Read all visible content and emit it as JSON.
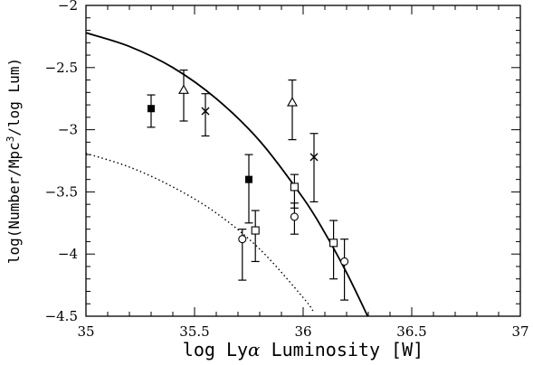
{
  "chart_data": {
    "type": "scatter",
    "title": "",
    "xlabel_parts": [
      "log Ly",
      "α",
      " Luminosity [W]"
    ],
    "ylabel_parts": [
      "log(Number/Mpc",
      "3",
      "/log Lum)"
    ],
    "xlim": [
      35,
      37
    ],
    "ylim": [
      -4.5,
      -2
    ],
    "x_ticks": [
      35,
      35.5,
      36,
      36.5,
      37
    ],
    "x_tick_labels": [
      "35",
      "35.5",
      "36",
      "36.5",
      "37"
    ],
    "y_ticks": [
      -4.5,
      -4,
      -3.5,
      -3,
      -2.5,
      -2
    ],
    "y_tick_labels": [
      "−4.5",
      "−4",
      "−3.5",
      "−3",
      "−2.5",
      "−2"
    ],
    "grid": false,
    "series": [
      {
        "marker": "filled-square",
        "points": [
          {
            "x": 35.3,
            "y": -2.83,
            "ylo": -2.98,
            "yhi": -2.72
          },
          {
            "x": 35.75,
            "y": -3.4,
            "ylo": -3.75,
            "yhi": -3.2
          }
        ]
      },
      {
        "marker": "triangle",
        "points": [
          {
            "x": 35.45,
            "y": -2.68,
            "ylo": -2.93,
            "yhi": -2.52
          },
          {
            "x": 35.95,
            "y": -2.78,
            "ylo": -3.08,
            "yhi": -2.6
          }
        ]
      },
      {
        "marker": "cross",
        "points": [
          {
            "x": 35.55,
            "y": -2.85,
            "ylo": -3.05,
            "yhi": -2.71
          },
          {
            "x": 36.05,
            "y": -3.22,
            "ylo": -3.58,
            "yhi": -3.03
          }
        ]
      },
      {
        "marker": "open-square",
        "points": [
          {
            "x": 35.78,
            "y": -3.81,
            "ylo": -4.06,
            "yhi": -3.65
          },
          {
            "x": 35.96,
            "y": -3.46,
            "ylo": -3.63,
            "yhi": -3.36
          },
          {
            "x": 36.14,
            "y": -3.91,
            "ylo": -4.2,
            "yhi": -3.73
          }
        ]
      },
      {
        "marker": "open-circle",
        "points": [
          {
            "x": 35.72,
            "y": -3.88,
            "ylo": -4.21,
            "yhi": -3.8
          },
          {
            "x": 35.96,
            "y": -3.7,
            "ylo": -3.84,
            "yhi": -3.59
          },
          {
            "x": 36.19,
            "y": -4.06,
            "ylo": -4.37,
            "yhi": -3.88
          }
        ]
      }
    ],
    "curves": [
      {
        "style": "solid",
        "points": [
          [
            35.0,
            -2.22
          ],
          [
            35.2,
            -2.33
          ],
          [
            35.4,
            -2.5
          ],
          [
            35.6,
            -2.75
          ],
          [
            35.8,
            -3.09
          ],
          [
            36.0,
            -3.55
          ],
          [
            36.1,
            -3.83
          ],
          [
            36.2,
            -4.15
          ],
          [
            36.3,
            -4.51
          ]
        ]
      },
      {
        "style": "dotted",
        "points": [
          [
            35.0,
            -3.19
          ],
          [
            35.2,
            -3.3
          ],
          [
            35.4,
            -3.46
          ],
          [
            35.6,
            -3.67
          ],
          [
            35.8,
            -3.96
          ],
          [
            36.0,
            -4.35
          ],
          [
            36.05,
            -4.47
          ]
        ]
      }
    ]
  }
}
